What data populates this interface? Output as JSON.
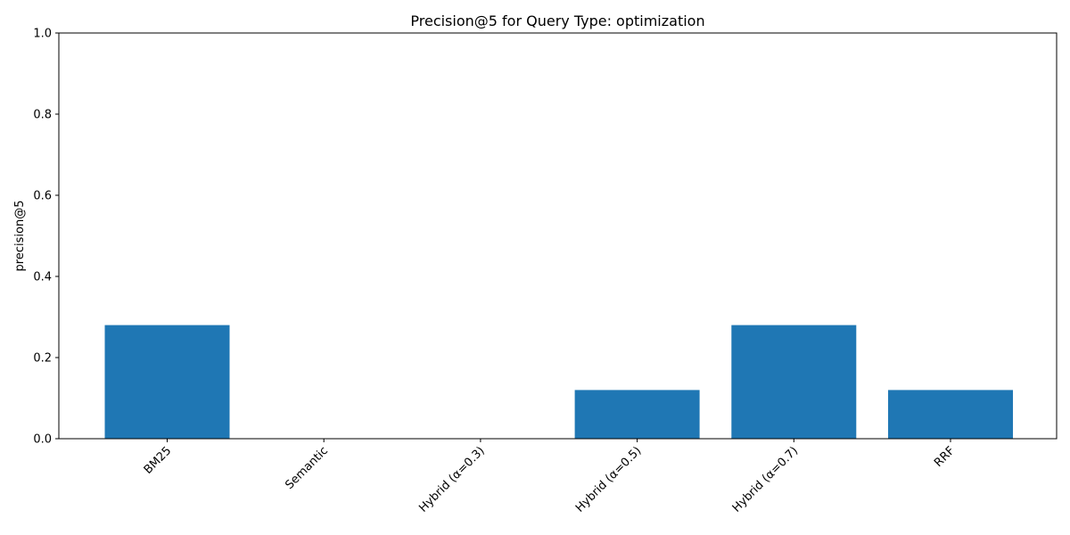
{
  "chart_data": {
    "type": "bar",
    "title": "Precision@5 for Query Type: optimization",
    "xlabel": "",
    "ylabel": "precision@5",
    "categories": [
      "BM25",
      "Semantic",
      "Hybrid (α=0.3)",
      "Hybrid (α=0.5)",
      "Hybrid (α=0.7)",
      "RRF"
    ],
    "values": [
      0.28,
      0.0,
      0.0,
      0.12,
      0.28,
      0.12
    ],
    "ylim": [
      0,
      1
    ],
    "yticks": [
      "0.0",
      "0.2",
      "0.4",
      "0.6",
      "0.8",
      "1.0"
    ],
    "bar_color": "#1f77b4",
    "grid": false,
    "legend": "none"
  }
}
